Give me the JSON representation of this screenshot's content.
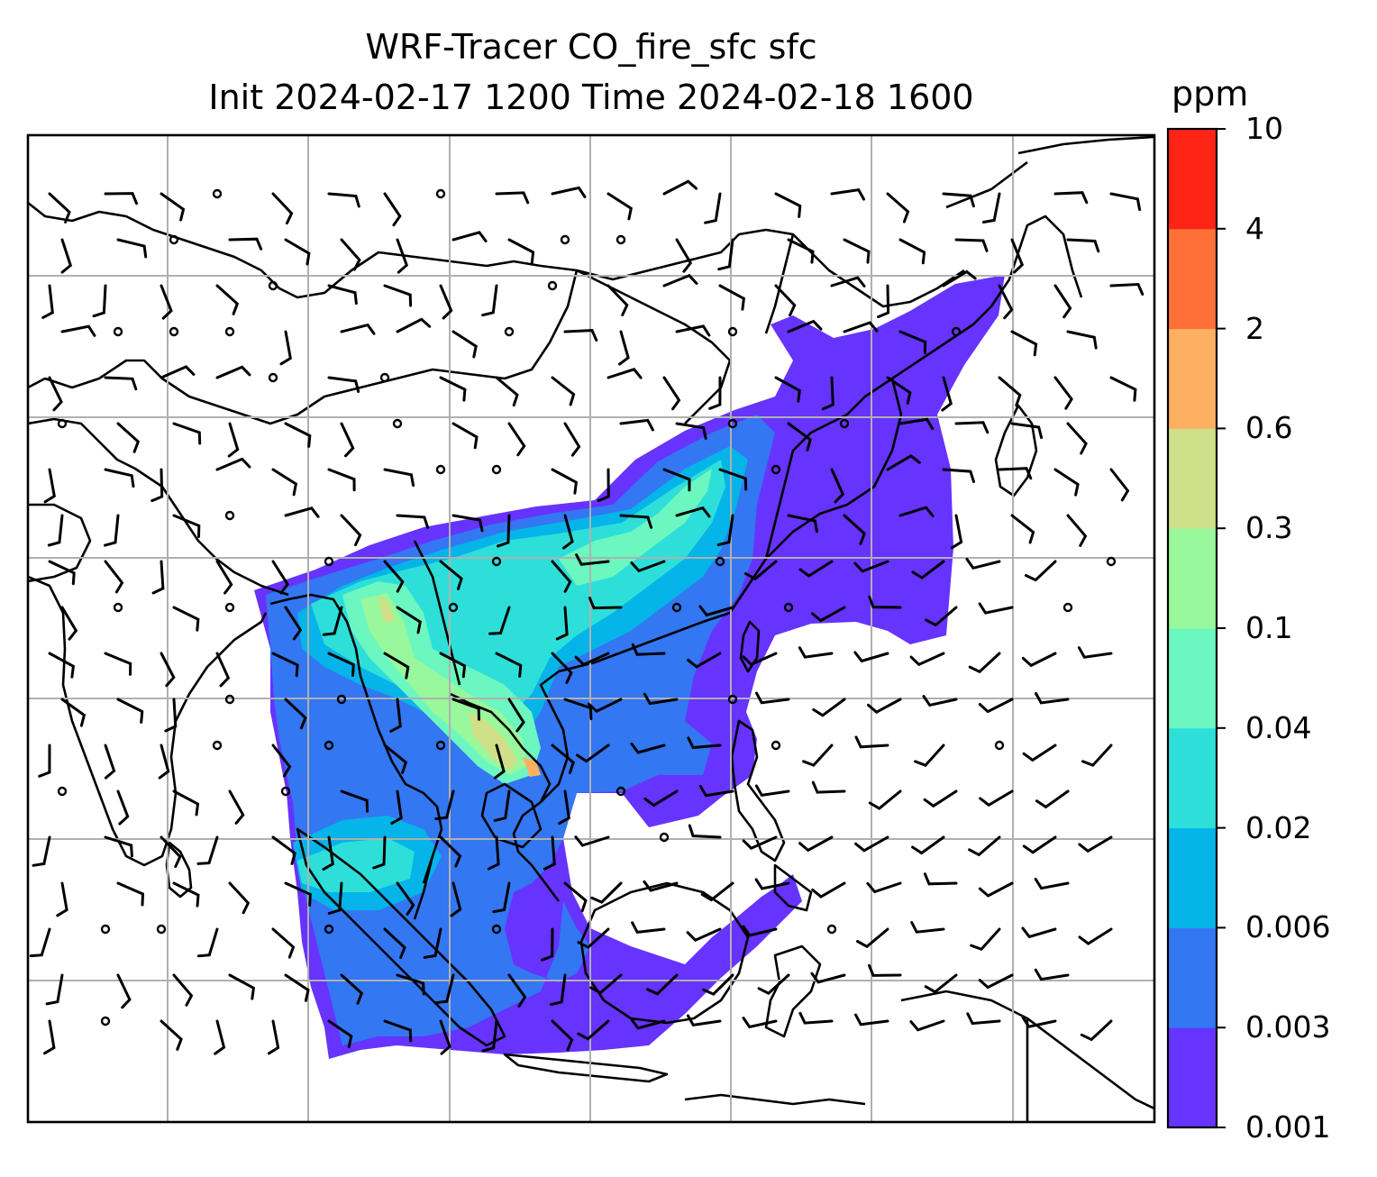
{
  "title": {
    "line1": "WRF-Tracer CO_fire_sfc sfc",
    "line2": "Init 2024-02-17 1200 Time 2024-02-18 1600"
  },
  "colorbar": {
    "unit": "ppm",
    "levels": [
      "0.001",
      "0.003",
      "0.006",
      "0.02",
      "0.04",
      "0.1",
      "0.3",
      "0.6",
      "2",
      "4",
      "10"
    ],
    "colors": [
      "#6633ff",
      "#3377f2",
      "#05b4e8",
      "#2edfd9",
      "#6cf7c0",
      "#98f89b",
      "#cfe088",
      "#fdb062",
      "#ff7138",
      "#ff2516"
    ]
  },
  "map": {
    "region": "South and Southeast Asia",
    "layers": [
      "coastlines",
      "country borders",
      "gridlines",
      "wind barbs",
      "CO concentration fill"
    ]
  }
}
